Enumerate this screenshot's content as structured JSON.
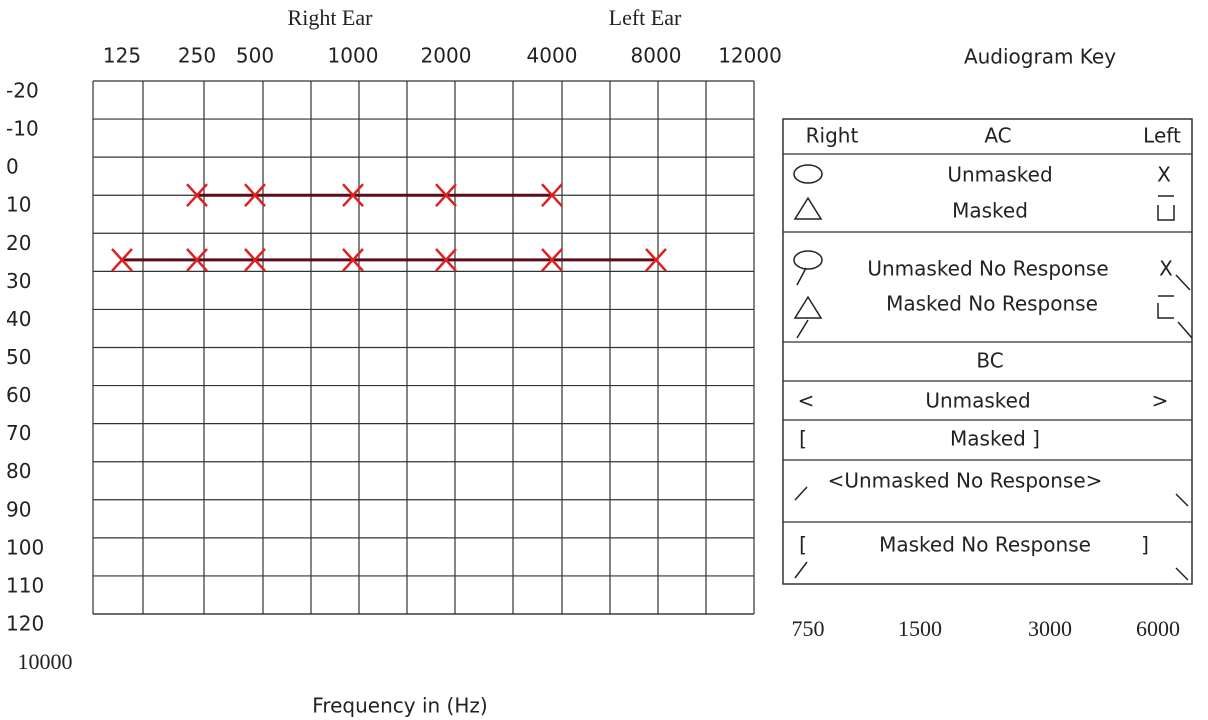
{
  "chart_data": {
    "type": "line",
    "title_right": "Right Ear",
    "title_left": "Left Ear",
    "x_label": "Frequency in (Hz)",
    "categories": [
      "125",
      "250",
      "500",
      "1000",
      "2000",
      "4000",
      "8000",
      "12000"
    ],
    "extra_x_labels": [
      "750",
      "1500",
      "3000",
      "6000",
      "10000"
    ],
    "series": [
      {
        "color": "#e02020",
        "line_color": "#5a0c1a",
        "values": [
          null,
          10,
          10,
          10,
          10,
          10,
          null,
          null
        ]
      },
      {
        "color": "#e02020",
        "line_color": "#5a0c1a",
        "values": [
          27,
          27,
          27,
          27,
          27,
          27,
          27,
          null
        ]
      }
    ],
    "ylim": [
      -20,
      120
    ],
    "yticks": [
      -20,
      -10,
      0,
      10,
      20,
      30,
      40,
      50,
      60,
      70,
      80,
      90,
      100,
      110,
      120
    ],
    "grid": true
  },
  "key": {
    "title": "Audiogram Key",
    "header": [
      "Right",
      "AC",
      "Left"
    ],
    "rows": [
      [
        "Unmasked",
        "X"
      ],
      [
        "Masked"
      ],
      [
        "Unmasked No Response",
        "X"
      ],
      [
        "Masked No Response"
      ],
      [
        "BC"
      ],
      [
        "<",
        "Unmasked",
        ">"
      ],
      [
        "[",
        "Masked ]"
      ],
      [
        "<Unmasked No Response>"
      ],
      [
        "[",
        "Masked No Response",
        "]"
      ]
    ]
  }
}
